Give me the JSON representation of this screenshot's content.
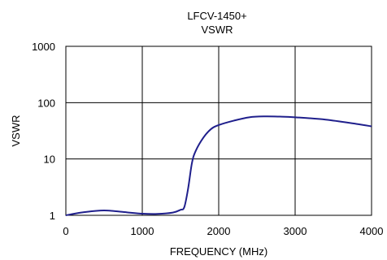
{
  "chart_data": {
    "type": "line",
    "title": "LFCV-1450+",
    "subtitle": "VSWR",
    "xlabel": "FREQUENCY (MHz)",
    "ylabel": "VSWR",
    "xlim": [
      0,
      4000
    ],
    "ylim": [
      1,
      1000
    ],
    "yscale": "log",
    "grid": true,
    "x_ticks": [
      "0",
      "1000",
      "2000",
      "3000",
      "4000"
    ],
    "y_ticks": [
      "1",
      "10",
      "100",
      "1000"
    ],
    "series": [
      {
        "color": "#1f1f8c",
        "x": [
          0,
          200,
          400,
          500,
          600,
          800,
          1000,
          1200,
          1400,
          1500,
          1550,
          1600,
          1650,
          1700,
          1800,
          1900,
          2000,
          2200,
          2400,
          2600,
          2800,
          3000,
          3400,
          3800,
          4000
        ],
        "y": [
          1.0,
          1.12,
          1.2,
          1.22,
          1.2,
          1.13,
          1.07,
          1.06,
          1.12,
          1.25,
          1.4,
          3.0,
          8.5,
          14,
          24,
          34,
          40,
          48,
          55,
          57,
          56.5,
          55,
          50,
          42,
          38
        ]
      }
    ]
  },
  "colors": {
    "line": "#1f1f8c",
    "grid": "#000000",
    "background": "#ffffff"
  }
}
